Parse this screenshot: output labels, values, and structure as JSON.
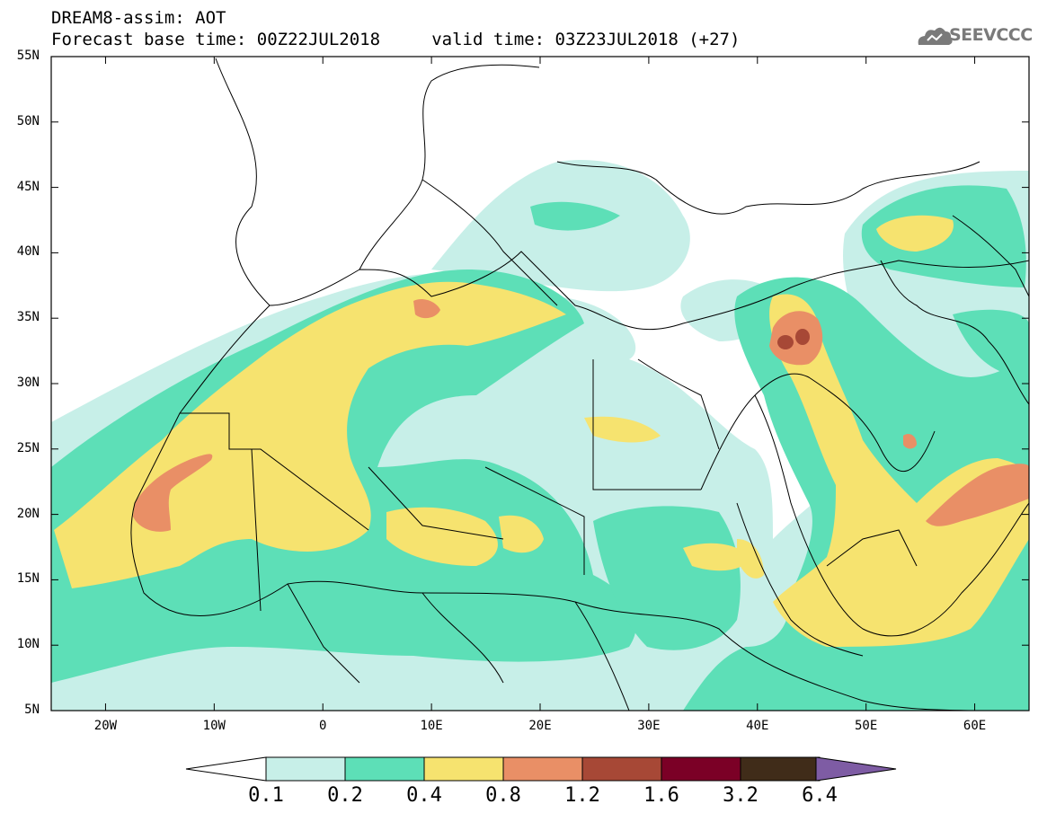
{
  "header": {
    "line1": "DREAM8-assim: AOT",
    "line2": "Forecast base time: 00Z22JUL2018     valid time: 03Z23JUL2018 (+27)"
  },
  "logo": {
    "text": "SEEVCCC",
    "icon": "cloud-icon"
  },
  "map": {
    "lon_range": [
      -25,
      65
    ],
    "lat_range": [
      5,
      55
    ],
    "lat_labels": [
      "55N",
      "50N",
      "45N",
      "40N",
      "35N",
      "30N",
      "25N",
      "20N",
      "15N",
      "10N",
      "5N"
    ],
    "lon_labels": [
      "20W",
      "10W",
      "0",
      "10E",
      "20E",
      "30E",
      "40E",
      "50E",
      "60E"
    ]
  },
  "colorbar": {
    "labels": [
      "0.1",
      "0.2",
      "0.4",
      "0.8",
      "1.2",
      "1.6",
      "3.2",
      "6.4"
    ],
    "colors": [
      "#ffffff",
      "#c7efe8",
      "#5ddfb7",
      "#f6e36f",
      "#e98f66",
      "#a74836",
      "#7b0026",
      "#402c19",
      "#7e5ca4"
    ]
  },
  "palette": {
    "c01": "#c7efe8",
    "c02": "#5ddfb7",
    "c04": "#f6e36f",
    "c08": "#e98f66",
    "c12": "#a74836"
  }
}
